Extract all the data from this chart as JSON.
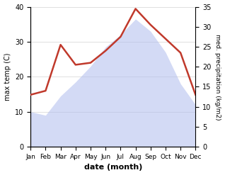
{
  "months": [
    "Jan",
    "Feb",
    "Mar",
    "Apr",
    "May",
    "Jun",
    "Jul",
    "Aug",
    "Sep",
    "Oct",
    "Nov",
    "Dec"
  ],
  "temp": [
    10.0,
    9.0,
    14.5,
    18.5,
    23.0,
    28.5,
    32.0,
    36.5,
    33.0,
    27.0,
    18.0,
    12.0
  ],
  "precip": [
    13.0,
    14.0,
    25.5,
    20.5,
    21.0,
    24.0,
    27.5,
    34.5,
    30.5,
    27.0,
    23.5,
    13.0
  ],
  "temp_fill_color": "#b0bcee",
  "temp_fill_alpha": 0.55,
  "precip_line_color": "#c0392b",
  "temp_ylim": [
    0,
    40
  ],
  "precip_ylim": [
    0,
    35
  ],
  "xlabel": "date (month)",
  "ylabel_left": "max temp (C)",
  "ylabel_right": "med. precipitation (kg/m2)",
  "bg_color": "#ffffff",
  "precip_lw": 1.8,
  "left_yticks": [
    0,
    10,
    20,
    30,
    40
  ],
  "right_yticks": [
    0,
    5,
    10,
    15,
    20,
    25,
    30,
    35
  ]
}
